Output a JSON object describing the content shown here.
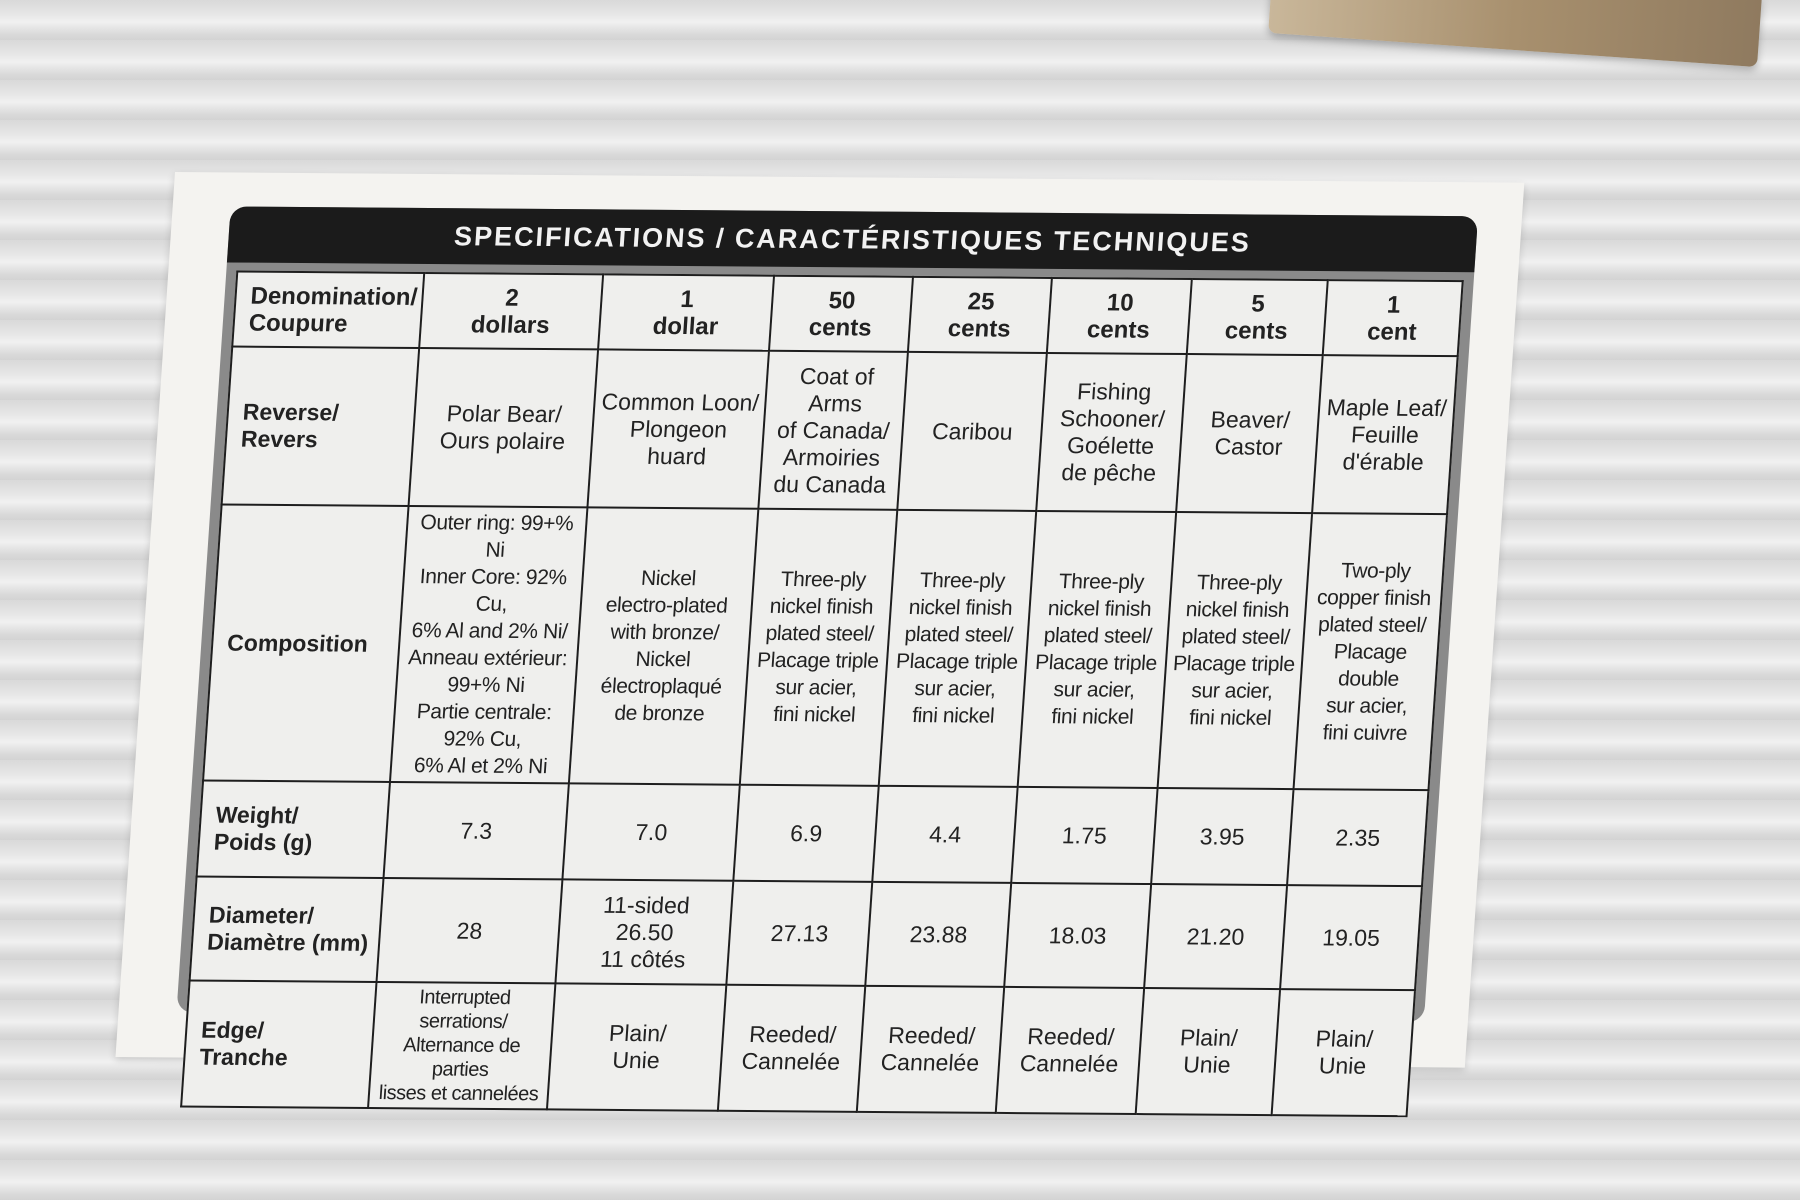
{
  "title": "SPECIFICATIONS / CARACTÉRISTIQUES TECHNIQUES",
  "row_labels": {
    "denomination": "Denomination/\nCoupure",
    "reverse": "Reverse/\nRevers",
    "composition": "Composition",
    "weight": "Weight/\nPoids (g)",
    "diameter": "Diameter/\nDiamètre (mm)",
    "edge": "Edge/\nTranche"
  },
  "coins": [
    {
      "denomination": "2\ndollars",
      "reverse": "Polar Bear/\nOurs polaire",
      "composition": "Outer ring: 99+% Ni\nInner Core: 92% Cu,\n6% Al and 2% Ni/\nAnneau extérieur:\n99+% Ni\nPartie centrale: 92% Cu,\n6% Al et 2% Ni",
      "weight": "7.3",
      "diameter": "28",
      "edge": "Interrupted serrations/\nAlternance de parties\nlisses et cannelées"
    },
    {
      "denomination": "1\ndollar",
      "reverse": "Common Loon/\nPlongeon huard",
      "composition": "Nickel\nelectro-plated\nwith bronze/\nNickel électroplaqué\nde bronze",
      "weight": "7.0",
      "diameter": "11-sided\n26.50\n11 côtés",
      "edge": "Plain/\nUnie"
    },
    {
      "denomination": "50\ncents",
      "reverse": "Coat of Arms\nof Canada/\nArmoiries\ndu Canada",
      "composition": "Three-ply\nnickel finish\nplated steel/\nPlacage triple\nsur acier,\nfini nickel",
      "weight": "6.9",
      "diameter": "27.13",
      "edge": "Reeded/\nCannelée"
    },
    {
      "denomination": "25\ncents",
      "reverse": "Caribou",
      "composition": "Three-ply\nnickel finish\nplated steel/\nPlacage triple\nsur acier,\nfini nickel",
      "weight": "4.4",
      "diameter": "23.88",
      "edge": "Reeded/\nCannelée"
    },
    {
      "denomination": "10\ncents",
      "reverse": "Fishing\nSchooner/\nGoélette\nde pêche",
      "composition": "Three-ply\nnickel finish\nplated steel/\nPlacage triple\nsur acier,\nfini nickel",
      "weight": "1.75",
      "diameter": "18.03",
      "edge": "Reeded/\nCannelée"
    },
    {
      "denomination": "5\ncents",
      "reverse": "Beaver/\nCastor",
      "composition": "Three-ply\nnickel finish\nplated steel/\nPlacage triple\nsur acier,\nfini nickel",
      "weight": "3.95",
      "diameter": "21.20",
      "edge": "Plain/\nUnie"
    },
    {
      "denomination": "1\ncent",
      "reverse": "Maple Leaf/\nFeuille\nd'érable",
      "composition": "Two-ply\ncopper finish\nplated steel/\nPlacage double\nsur acier,\nfini cuivre",
      "weight": "2.35",
      "diameter": "19.05",
      "edge": "Plain/\nUnie"
    }
  ]
}
